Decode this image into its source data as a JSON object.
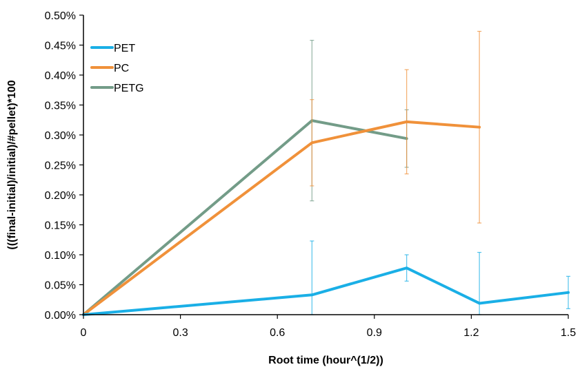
{
  "chart_data": {
    "type": "line",
    "xlabel": "Root time (hour^(1/2))",
    "ylabel": "(((final-initial)/initial)/#pellet)*100",
    "xlim": [
      0,
      1.5
    ],
    "ylim": [
      0,
      0.005
    ],
    "x_ticks": [
      "0",
      "0.3",
      "0.6",
      "0.9",
      "1.2",
      "1.5"
    ],
    "y_ticks": [
      "0.00%",
      "0.05%",
      "0.10%",
      "0.15%",
      "0.20%",
      "0.25%",
      "0.30%",
      "0.35%",
      "0.40%",
      "0.45%",
      "0.50%"
    ],
    "grid": false,
    "legend_position": "top-left",
    "series": [
      {
        "name": "PET",
        "color": "#1aafe6",
        "x": [
          0,
          0.707,
          1.0,
          1.225,
          1.5
        ],
        "y": [
          0,
          0.00033,
          0.00078,
          0.00019,
          0.00037
        ],
        "err": [
          0,
          0.0009,
          0.00022,
          0.00085,
          0.00027
        ]
      },
      {
        "name": "PC",
        "color": "#f0913a",
        "x": [
          0,
          0.707,
          1.0,
          1.225
        ],
        "y": [
          0,
          0.00287,
          0.00322,
          0.00313
        ],
        "err": [
          0,
          0.00072,
          0.00087,
          0.0016
        ]
      },
      {
        "name": "PETG",
        "color": "#739c88",
        "x": [
          0,
          0.707,
          1.0
        ],
        "y": [
          0,
          0.00324,
          0.00294
        ],
        "err": [
          0,
          0.00134,
          0.00048
        ]
      }
    ]
  }
}
